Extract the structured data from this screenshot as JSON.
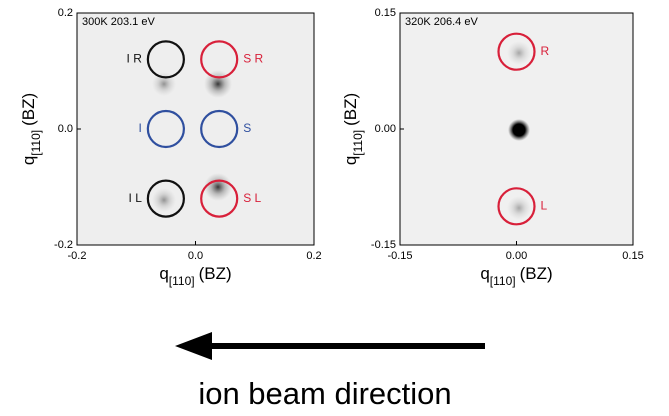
{
  "chart_data": [
    {
      "type": "image",
      "title": "300K 203.1 eV",
      "xlabel": {
        "main": "q",
        "sub": "[110]",
        "unit": "(BZ)"
      },
      "ylabel": {
        "main": "q",
        "sub": "[110]",
        "unit": "(BZ)"
      },
      "xlim": [
        -0.2,
        0.2
      ],
      "ylim": [
        -0.2,
        0.2
      ],
      "xticks": [
        -0.2,
        {
          "value": 0,
          "label": "0.0"
        },
        0.2
      ],
      "yticks": [
        -0.2,
        {
          "value": 0,
          "label": "0.0"
        },
        0.2
      ],
      "markers": [
        {
          "label": "I R",
          "x": -0.05,
          "y": 0.12,
          "color": "#111111"
        },
        {
          "label": "S R",
          "x": 0.04,
          "y": 0.12,
          "color": "#d8203a"
        },
        {
          "label": "I",
          "x": -0.05,
          "y": 0,
          "color": "#2f4f9f"
        },
        {
          "label": "S",
          "x": 0.04,
          "y": 0,
          "color": "#2f4f9f"
        },
        {
          "label": "I L",
          "x": -0.05,
          "y": -0.12,
          "color": "#111111"
        },
        {
          "label": "S L",
          "x": 0.04,
          "y": -0.12,
          "color": "#d8203a"
        }
      ]
    },
    {
      "type": "image",
      "title": "320K 206.4 eV",
      "xlabel": {
        "main": "q",
        "sub": "[110]",
        "unit": "(BZ)"
      },
      "ylabel": {
        "main": "q",
        "sub": "[110]",
        "unit": "(BZ)"
      },
      "xlim": [
        -0.15,
        0.15
      ],
      "ylim": [
        -0.15,
        0.15
      ],
      "xticks": [
        -0.15,
        {
          "value": 0,
          "label": "0.00"
        },
        0.15
      ],
      "yticks": [
        -0.15,
        {
          "value": 0,
          "label": "0.00"
        },
        0.15
      ],
      "markers": [
        {
          "label": "R",
          "x": 0,
          "y": 0.1,
          "color": "#d8203a"
        },
        {
          "label": "L",
          "x": 0,
          "y": -0.1,
          "color": "#d8203a"
        }
      ]
    }
  ],
  "caption": "ion beam direction"
}
